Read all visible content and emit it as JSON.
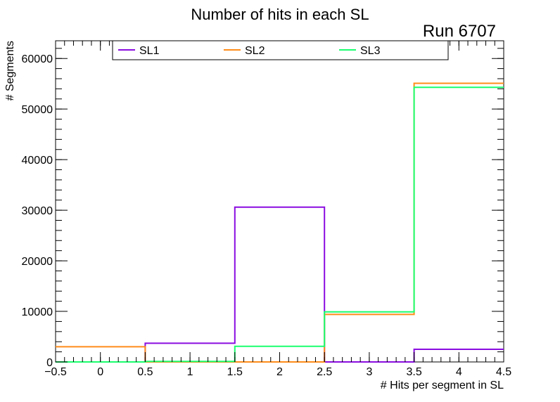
{
  "chart_data": {
    "type": "line",
    "title": "Number of hits in each SL",
    "annotation": "Run 6707",
    "xlabel": "# Hits per segment in SL",
    "ylabel": "# Segments",
    "xlim": [
      -0.5,
      4.5
    ],
    "ylim": [
      0,
      63500
    ],
    "x_ticks": [
      -0.5,
      0,
      0.5,
      1,
      1.5,
      2,
      2.5,
      3,
      3.5,
      4,
      4.5
    ],
    "x_tick_labels": [
      "−0.5",
      "0",
      "0.5",
      "1",
      "1.5",
      "2",
      "2.5",
      "3",
      "3.5",
      "4",
      "4.5"
    ],
    "y_ticks": [
      0,
      10000,
      20000,
      30000,
      40000,
      50000,
      60000
    ],
    "y_tick_labels": [
      "0",
      "10000",
      "20000",
      "30000",
      "40000",
      "50000",
      "60000"
    ],
    "bin_edges": [
      -0.5,
      0.5,
      1.5,
      2.5,
      3.5,
      4.5
    ],
    "histtype": "step",
    "legend_position": "top",
    "grid": false,
    "series": [
      {
        "name": "SL1",
        "color": "#8a0ce0",
        "values": [
          0,
          3700,
          30600,
          0,
          2500
        ]
      },
      {
        "name": "SL2",
        "color": "#ff8c1a",
        "values": [
          3000,
          0,
          0,
          9400,
          55100
        ]
      },
      {
        "name": "SL3",
        "color": "#1aff6e",
        "values": [
          0,
          100,
          3100,
          9900,
          54300
        ]
      }
    ]
  }
}
